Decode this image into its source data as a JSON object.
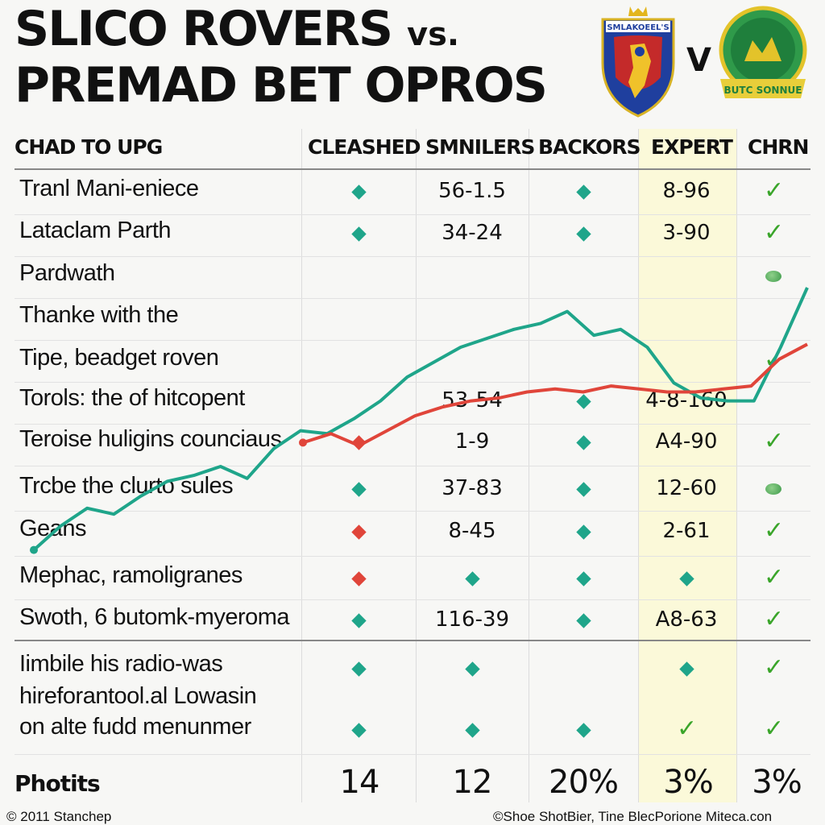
{
  "title": {
    "line1": "SLICO ROVERS",
    "vs": "vs.",
    "line2": "PREMAD BET OPROS"
  },
  "crests": {
    "left_text": "SMLAKOEEL'S",
    "middle": "V",
    "right_text": "BUTC SONNUE"
  },
  "columns": [
    "CHAD TO UPG",
    "CLEASHED",
    "SMNILERS",
    "BACKORS",
    "EXPERT",
    "CHRN"
  ],
  "rows": [
    {
      "label": "Tranl Mani-eniece",
      "cleashed": "teal",
      "smnilers": "56-1.5",
      "backors": "teal",
      "expert": "8-96",
      "chrn": "check"
    },
    {
      "label": "Lataclаm Parth",
      "cleashed": "teal",
      "smnilers": "34-24",
      "backors": "teal",
      "expert": "3-90",
      "chrn": "check"
    },
    {
      "label": "Pardwath",
      "cleashed": "",
      "smnilers": "",
      "backors": "",
      "expert": "",
      "chrn": "blob"
    },
    {
      "label": "Thanke with the",
      "cleashed": "",
      "smnilers": "",
      "backors": "",
      "expert": "",
      "chrn": ""
    },
    {
      "label": "Tipe, beadget roven",
      "cleashed": "",
      "smnilers": "",
      "backors": "",
      "expert": "",
      "chrn": "check"
    },
    {
      "label": "Torols: the of hitcopent",
      "cleashed": "",
      "smnilers": "53-54",
      "backors": "teal",
      "expert": "4-8-160",
      "chrn": ""
    },
    {
      "label": "Teroise huligins counciaus",
      "cleashed": "red",
      "smnilers": "1-9",
      "backors": "teal",
      "expert": "A4-90",
      "chrn": "check"
    },
    {
      "label": "Trcbe the clurto sules",
      "cleashed": "teal",
      "smnilers": "37-83",
      "backors": "teal",
      "expert": "12-60",
      "chrn": "blob"
    },
    {
      "label": "Geans",
      "cleashed": "red",
      "smnilers": "8-45",
      "backors": "teal",
      "expert": "2-61",
      "chrn": "check"
    },
    {
      "label": "Mephac, ramoligranes",
      "cleashed": "red",
      "smnilers": "teal",
      "backors": "teal",
      "expert": "teal",
      "chrn": "check"
    },
    {
      "label": "Swoth, 6 butomk-myeroma",
      "cleashed": "teal",
      "smnilers": "116-39",
      "backors": "teal",
      "expert": "A8-63",
      "chrn": "check"
    }
  ],
  "bottom_block": {
    "lines": [
      "Iimbile his radio-was",
      "hireforantool.al Lowasin",
      "on alte fudd menunmer"
    ],
    "cells": [
      {
        "cleashed": "teal",
        "smnilers": "teal",
        "backors": "",
        "expert": "teal",
        "chrn": "check"
      },
      {
        "cleashed": "teal",
        "smnilers": "teal",
        "backors": "teal",
        "expert": "check",
        "chrn": "check"
      }
    ]
  },
  "totals": {
    "label": "Photits",
    "values": [
      "14",
      "12",
      "20%",
      "3%",
      "3%"
    ]
  },
  "footer": {
    "left": "© 2011 Stanchep",
    "right": "©Shoe ShotBier, Tine BlecPorione Miteca.con"
  },
  "colors": {
    "teal": "#1fa58a",
    "red": "#e0453a",
    "check": "#3aa52a",
    "expert_band": "#fbf8d6"
  },
  "chart_data": {
    "type": "line",
    "series": [
      {
        "color": "#1fa58a",
        "values": [
          0.02,
          0.1,
          0.16,
          0.14,
          0.2,
          0.25,
          0.27,
          0.3,
          0.26,
          0.36,
          0.42,
          0.41,
          0.46,
          0.52,
          0.6,
          0.65,
          0.7,
          0.73,
          0.76,
          0.78,
          0.82,
          0.74,
          0.76,
          0.7,
          0.58,
          0.53,
          0.52,
          0.52,
          0.7,
          0.9
        ]
      },
      {
        "color": "#e0453a",
        "values": [
          0.38,
          0.41,
          0.37,
          0.42,
          0.47,
          0.5,
          0.52,
          0.53,
          0.55,
          0.56,
          0.55,
          0.57,
          0.56,
          0.55,
          0.55,
          0.56,
          0.57,
          0.66,
          0.71
        ]
      }
    ]
  }
}
